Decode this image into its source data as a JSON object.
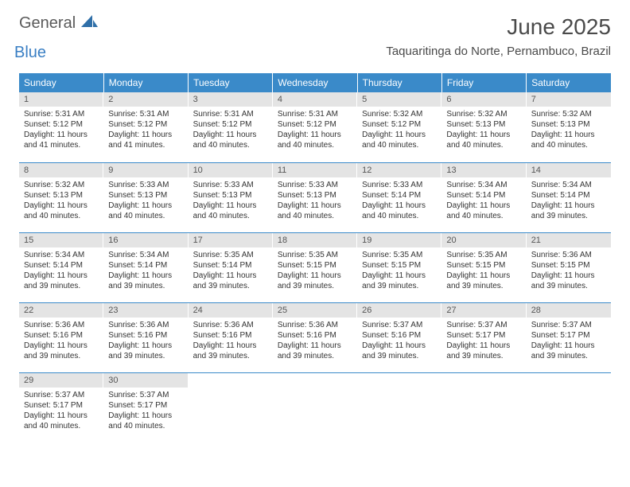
{
  "brand": {
    "word1": "General",
    "word2": "Blue",
    "logo_fill": "#2f6fa8"
  },
  "colors": {
    "header_bg": "#3a8ac9",
    "header_text": "#ffffff",
    "daynum_bg": "#e4e4e4",
    "row_border": "#3a8ac9",
    "text": "#333333"
  },
  "title": "June 2025",
  "location": "Taquaritinga do Norte, Pernambuco, Brazil",
  "weekdays": [
    "Sunday",
    "Monday",
    "Tuesday",
    "Wednesday",
    "Thursday",
    "Friday",
    "Saturday"
  ],
  "weeks": [
    [
      {
        "n": "1",
        "sr": "5:31 AM",
        "ss": "5:12 PM",
        "dl": "11 hours and 41 minutes."
      },
      {
        "n": "2",
        "sr": "5:31 AM",
        "ss": "5:12 PM",
        "dl": "11 hours and 41 minutes."
      },
      {
        "n": "3",
        "sr": "5:31 AM",
        "ss": "5:12 PM",
        "dl": "11 hours and 40 minutes."
      },
      {
        "n": "4",
        "sr": "5:31 AM",
        "ss": "5:12 PM",
        "dl": "11 hours and 40 minutes."
      },
      {
        "n": "5",
        "sr": "5:32 AM",
        "ss": "5:12 PM",
        "dl": "11 hours and 40 minutes."
      },
      {
        "n": "6",
        "sr": "5:32 AM",
        "ss": "5:13 PM",
        "dl": "11 hours and 40 minutes."
      },
      {
        "n": "7",
        "sr": "5:32 AM",
        "ss": "5:13 PM",
        "dl": "11 hours and 40 minutes."
      }
    ],
    [
      {
        "n": "8",
        "sr": "5:32 AM",
        "ss": "5:13 PM",
        "dl": "11 hours and 40 minutes."
      },
      {
        "n": "9",
        "sr": "5:33 AM",
        "ss": "5:13 PM",
        "dl": "11 hours and 40 minutes."
      },
      {
        "n": "10",
        "sr": "5:33 AM",
        "ss": "5:13 PM",
        "dl": "11 hours and 40 minutes."
      },
      {
        "n": "11",
        "sr": "5:33 AM",
        "ss": "5:13 PM",
        "dl": "11 hours and 40 minutes."
      },
      {
        "n": "12",
        "sr": "5:33 AM",
        "ss": "5:14 PM",
        "dl": "11 hours and 40 minutes."
      },
      {
        "n": "13",
        "sr": "5:34 AM",
        "ss": "5:14 PM",
        "dl": "11 hours and 40 minutes."
      },
      {
        "n": "14",
        "sr": "5:34 AM",
        "ss": "5:14 PM",
        "dl": "11 hours and 39 minutes."
      }
    ],
    [
      {
        "n": "15",
        "sr": "5:34 AM",
        "ss": "5:14 PM",
        "dl": "11 hours and 39 minutes."
      },
      {
        "n": "16",
        "sr": "5:34 AM",
        "ss": "5:14 PM",
        "dl": "11 hours and 39 minutes."
      },
      {
        "n": "17",
        "sr": "5:35 AM",
        "ss": "5:14 PM",
        "dl": "11 hours and 39 minutes."
      },
      {
        "n": "18",
        "sr": "5:35 AM",
        "ss": "5:15 PM",
        "dl": "11 hours and 39 minutes."
      },
      {
        "n": "19",
        "sr": "5:35 AM",
        "ss": "5:15 PM",
        "dl": "11 hours and 39 minutes."
      },
      {
        "n": "20",
        "sr": "5:35 AM",
        "ss": "5:15 PM",
        "dl": "11 hours and 39 minutes."
      },
      {
        "n": "21",
        "sr": "5:36 AM",
        "ss": "5:15 PM",
        "dl": "11 hours and 39 minutes."
      }
    ],
    [
      {
        "n": "22",
        "sr": "5:36 AM",
        "ss": "5:16 PM",
        "dl": "11 hours and 39 minutes."
      },
      {
        "n": "23",
        "sr": "5:36 AM",
        "ss": "5:16 PM",
        "dl": "11 hours and 39 minutes."
      },
      {
        "n": "24",
        "sr": "5:36 AM",
        "ss": "5:16 PM",
        "dl": "11 hours and 39 minutes."
      },
      {
        "n": "25",
        "sr": "5:36 AM",
        "ss": "5:16 PM",
        "dl": "11 hours and 39 minutes."
      },
      {
        "n": "26",
        "sr": "5:37 AM",
        "ss": "5:16 PM",
        "dl": "11 hours and 39 minutes."
      },
      {
        "n": "27",
        "sr": "5:37 AM",
        "ss": "5:17 PM",
        "dl": "11 hours and 39 minutes."
      },
      {
        "n": "28",
        "sr": "5:37 AM",
        "ss": "5:17 PM",
        "dl": "11 hours and 39 minutes."
      }
    ],
    [
      {
        "n": "29",
        "sr": "5:37 AM",
        "ss": "5:17 PM",
        "dl": "11 hours and 40 minutes."
      },
      {
        "n": "30",
        "sr": "5:37 AM",
        "ss": "5:17 PM",
        "dl": "11 hours and 40 minutes."
      },
      null,
      null,
      null,
      null,
      null
    ]
  ],
  "labels": {
    "sunrise": "Sunrise: ",
    "sunset": "Sunset: ",
    "daylight": "Daylight: "
  }
}
